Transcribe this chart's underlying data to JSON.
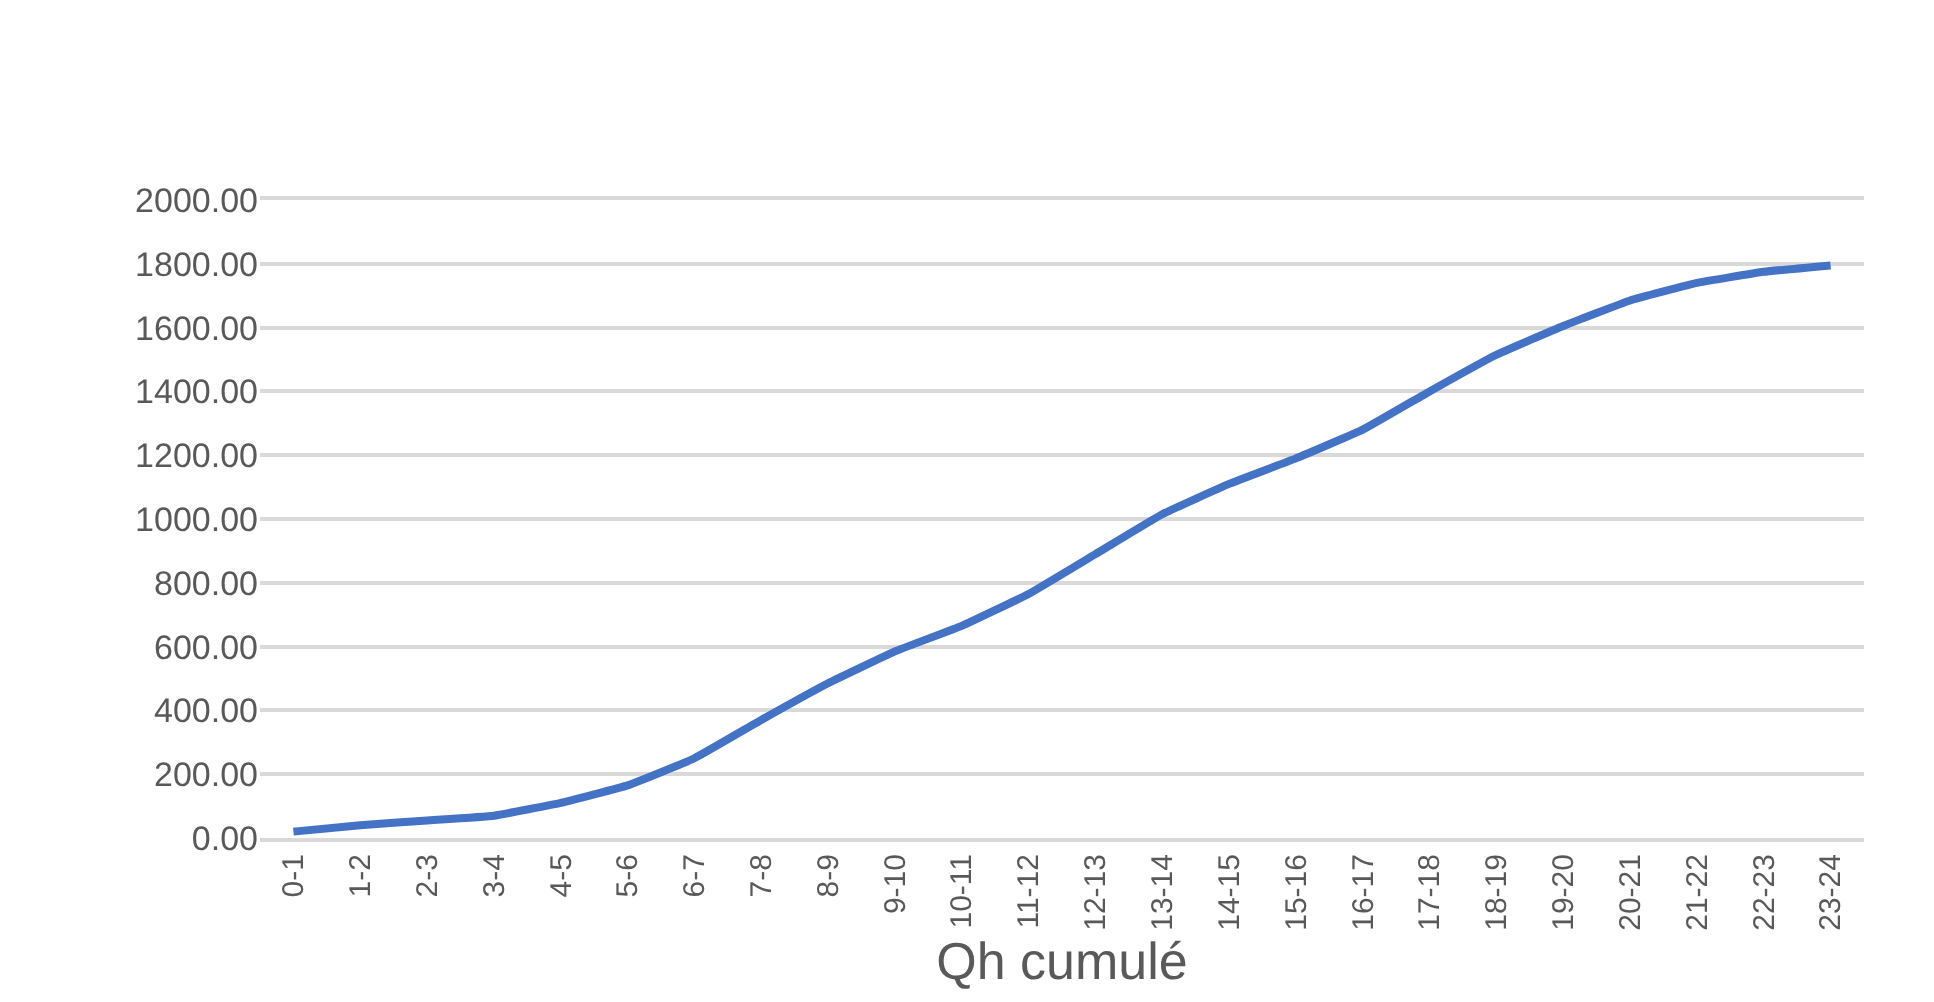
{
  "chart_data": {
    "type": "line",
    "xlabel": "Qh cumulé",
    "categories": [
      "0-1",
      "1-2",
      "2-3",
      "3-4",
      "4-5",
      "5-6",
      "6-7",
      "7-8",
      "8-9",
      "9-10",
      "10-11",
      "11-12",
      "12-13",
      "13-14",
      "14-15",
      "15-16",
      "16-17",
      "17-18",
      "18-19",
      "19-20",
      "20-21",
      "21-22",
      "22-23",
      "23-24"
    ],
    "series": [
      {
        "color": "#4472c4",
        "values": [
          20,
          40,
          55,
          70,
          110,
          165,
          250,
          370,
          485,
          585,
          665,
          765,
          890,
          1015,
          1110,
          1190,
          1280,
          1400,
          1515,
          1605,
          1685,
          1740,
          1775,
          1795
        ]
      }
    ],
    "ylim": [
      0,
      2000
    ],
    "yticks": [
      {
        "value": 0,
        "label": "0.00"
      },
      {
        "value": 200,
        "label": "200.00"
      },
      {
        "value": 400,
        "label": "400.00"
      },
      {
        "value": 600,
        "label": "600.00"
      },
      {
        "value": 800,
        "label": "800.00"
      },
      {
        "value": 1000,
        "label": "1000.00"
      },
      {
        "value": 1200,
        "label": "1200.00"
      },
      {
        "value": 1400,
        "label": "1400.00"
      },
      {
        "value": 1600,
        "label": "1600.00"
      },
      {
        "value": 1800,
        "label": "1800.00"
      },
      {
        "value": 2000,
        "label": "2000.00"
      }
    ],
    "grid": "y",
    "marker": "none",
    "line_style": "solid"
  }
}
